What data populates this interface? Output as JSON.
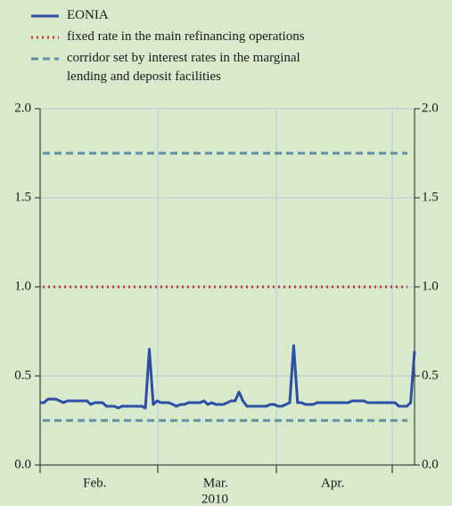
{
  "chart_data": {
    "type": "line",
    "categories": [
      null,
      null,
      null,
      null,
      null,
      null,
      null,
      null,
      null,
      null,
      null,
      null,
      null,
      null,
      "Feb.",
      null,
      null,
      null,
      null,
      null,
      null,
      null,
      null,
      null,
      null,
      null,
      null,
      null,
      null,
      null,
      null,
      null,
      null,
      null,
      null,
      null,
      null,
      null,
      null,
      null,
      null,
      null,
      null,
      null,
      null,
      "Mar.",
      null,
      null,
      null,
      null,
      null,
      null,
      null,
      null,
      null,
      null,
      null,
      null,
      null,
      null,
      null,
      null,
      null,
      null,
      null,
      null,
      null,
      null,
      null,
      null,
      null,
      null,
      null,
      null,
      null,
      "Apr.",
      null,
      null,
      null,
      null,
      null,
      null,
      null,
      null,
      null,
      null,
      null,
      null,
      null,
      null,
      null,
      null,
      null,
      null,
      null,
      null,
      null
    ],
    "xlabel": "2010",
    "series": [
      {
        "name": "EONIA",
        "color": "#2b4ea6",
        "values": [
          0.35,
          0.35,
          0.37,
          0.37,
          0.37,
          0.36,
          0.35,
          0.36,
          0.36,
          0.36,
          0.36,
          0.36,
          0.36,
          0.34,
          0.35,
          0.35,
          0.35,
          0.33,
          0.33,
          0.33,
          0.32,
          0.33,
          0.33,
          0.33,
          0.33,
          0.33,
          0.33,
          0.32,
          0.65,
          0.34,
          0.36,
          0.35,
          0.35,
          0.35,
          0.34,
          0.33,
          0.34,
          0.34,
          0.35,
          0.35,
          0.35,
          0.35,
          0.36,
          0.34,
          0.35,
          0.34,
          0.34,
          0.34,
          0.35,
          0.36,
          0.36,
          0.41,
          0.36,
          0.33,
          0.33,
          0.33,
          0.33,
          0.33,
          0.33,
          0.34,
          0.34,
          0.33,
          0.33,
          0.34,
          0.35,
          0.67,
          0.35,
          0.35,
          0.34,
          0.34,
          0.34,
          0.35,
          0.35,
          0.35,
          0.35,
          0.35,
          0.35,
          0.35,
          0.35,
          0.35,
          0.36,
          0.36,
          0.36,
          0.36,
          0.35,
          0.35,
          0.35,
          0.35,
          0.35,
          0.35,
          0.35,
          0.35,
          0.33,
          0.33,
          0.33,
          0.35,
          0.64
        ]
      }
    ],
    "hlines": [
      {
        "name": "fixed rate in the main refinancing operations",
        "color": "#c0392b",
        "style": "dotted",
        "values": [
          1.0
        ]
      },
      {
        "name": "corridor set by interest rates in the marginal lending and deposit facilities",
        "color": "#5e8fa3",
        "style": "dashed",
        "values": [
          0.25,
          1.75
        ]
      }
    ],
    "ylim": [
      0,
      2
    ],
    "yticks": [
      {
        "value": 0,
        "label": "0.0"
      },
      0.5,
      {
        "value": 1,
        "label": "1.0"
      },
      1.5,
      {
        "value": 2,
        "label": "2.0"
      }
    ],
    "grid": true
  }
}
